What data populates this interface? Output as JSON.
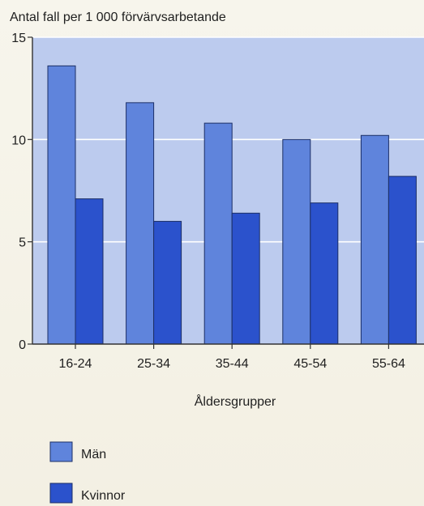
{
  "chart_data": {
    "type": "bar",
    "title": "",
    "ylabel": "Antal fall per 1 000 förvärvsarbetande",
    "xlabel": "Åldersgrupper",
    "categories": [
      "16-24",
      "25-34",
      "35-44",
      "45-54",
      "55-64"
    ],
    "series": [
      {
        "name": "Män",
        "values": [
          13.6,
          11.8,
          10.8,
          10.0,
          10.2
        ]
      },
      {
        "name": "Kvinnor",
        "values": [
          7.1,
          6.0,
          6.4,
          6.9,
          8.2
        ]
      }
    ],
    "ylim": [
      0,
      15
    ],
    "yticks": [
      0,
      5,
      10,
      15
    ],
    "grid": true,
    "legend": "bottom-left",
    "colors": {
      "men": "#5f84dc",
      "women": "#2b52cc",
      "plot_background": "#bccbee",
      "bar_outline": "#1c2f66",
      "axis": "#333333"
    }
  }
}
